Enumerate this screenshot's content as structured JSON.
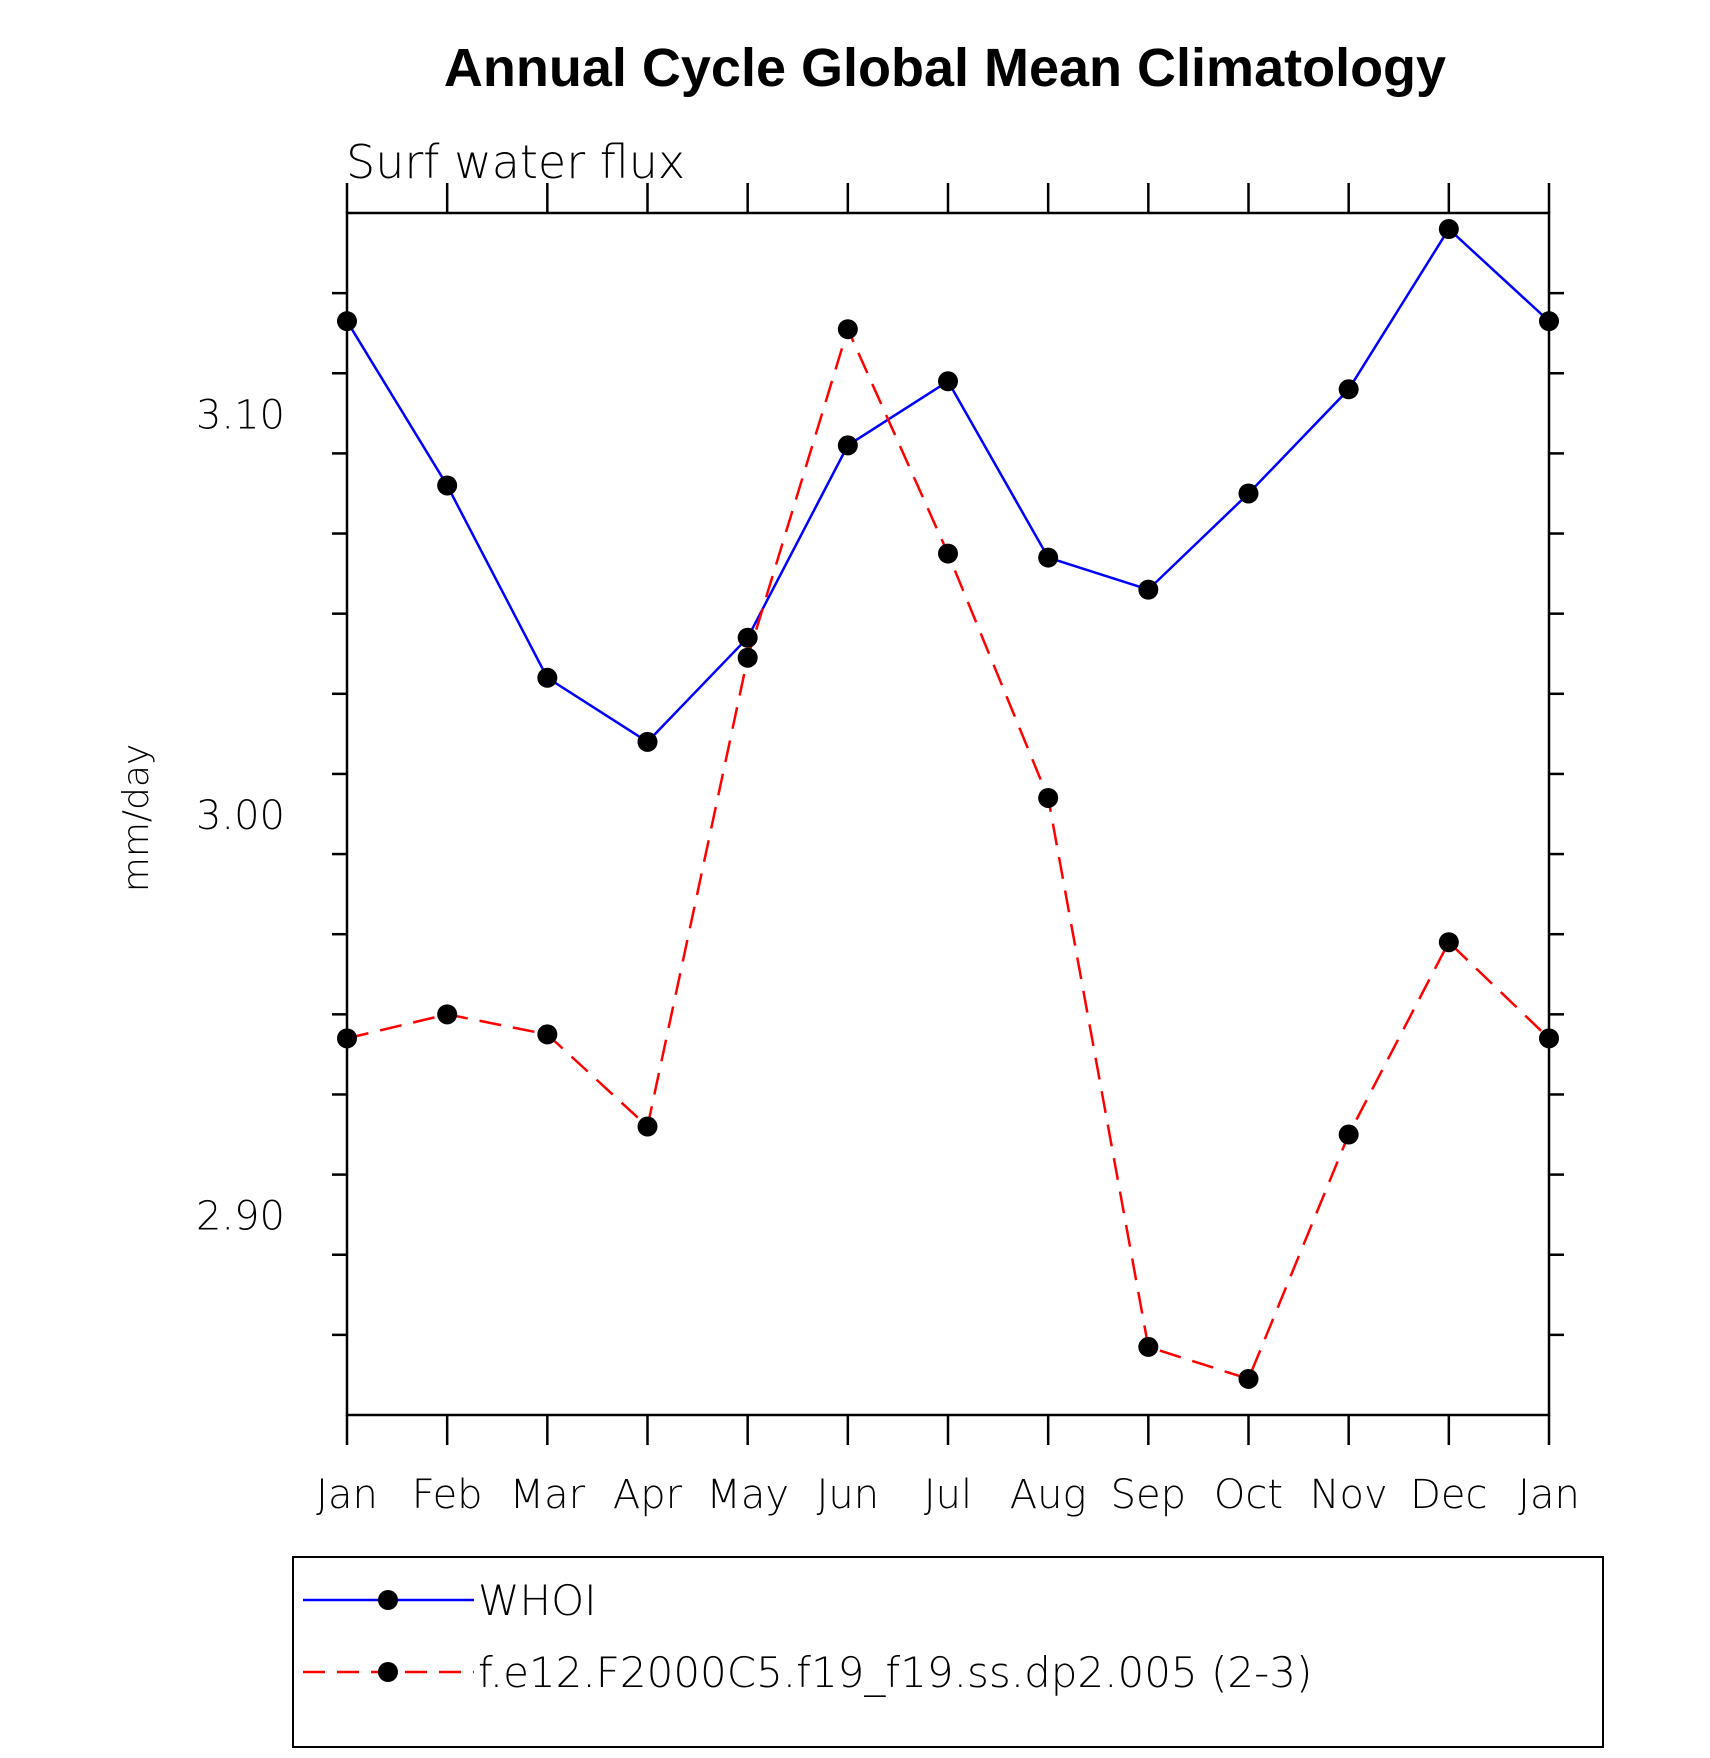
{
  "chart_data": {
    "type": "line",
    "title": "Annual Cycle Global Mean Climatology",
    "subtitle": "Surf water flux",
    "xlabel": "",
    "ylabel": "mm/day",
    "categories": [
      "Jan",
      "Feb",
      "Mar",
      "Apr",
      "May",
      "Jun",
      "Jul",
      "Aug",
      "Sep",
      "Oct",
      "Nov",
      "Dec",
      "Jan"
    ],
    "y_ticks": [
      "2.90",
      "3.00",
      "3.10"
    ],
    "ylim": [
      2.85,
      3.15
    ],
    "grid": false,
    "legend_position": "bottom",
    "series": [
      {
        "name": "WHOI",
        "color": "#0000ff",
        "dash": "solid",
        "marker": "filled-circle",
        "values": [
          3.123,
          3.082,
          3.034,
          3.018,
          3.044,
          3.092,
          3.108,
          3.064,
          3.056,
          3.08,
          3.106,
          3.146,
          3.123
        ]
      },
      {
        "name": "f.e12.F2000C5.f19_f19.ss.dp2.005 (2-3)",
        "color": "#ff0000",
        "dash": "dashed",
        "marker": "filled-circle",
        "values": [
          2.944,
          2.95,
          2.945,
          2.922,
          3.039,
          3.121,
          3.065,
          3.004,
          2.867,
          2.859,
          2.92,
          2.968,
          2.944
        ]
      }
    ]
  }
}
